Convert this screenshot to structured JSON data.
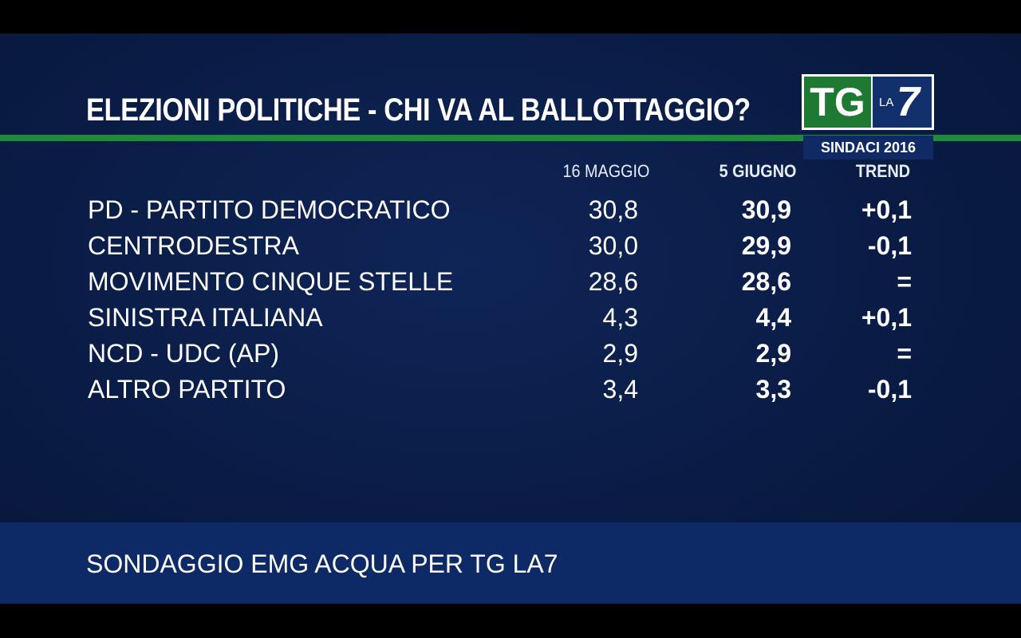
{
  "header": {
    "title": "ELEZIONI POLITICHE - CHI VA AL BALLOTTAGGIO?",
    "logo": {
      "tg": "TG",
      "la": "LA",
      "seven": "7"
    },
    "badge": "SINDACI 2016"
  },
  "table": {
    "columns": [
      "16 MAGGIO",
      "5 GIUGNO",
      "TREND"
    ],
    "rows": [
      [
        "PD - PARTITO DEMOCRATICO",
        "30,8",
        "30,9",
        "+0,1"
      ],
      [
        "CENTRODESTRA",
        "30,0",
        "29,9",
        "-0,1"
      ],
      [
        "MOVIMENTO CINQUE STELLE",
        "28,6",
        "28,6",
        "="
      ],
      [
        "SINISTRA ITALIANA",
        "4,3",
        "4,4",
        "+0,1"
      ],
      [
        "NCD - UDC (AP)",
        "2,9",
        "2,9",
        "="
      ],
      [
        "ALTRO PARTITO",
        "3,4",
        "3,3",
        "-0,1"
      ]
    ]
  },
  "footer": {
    "source": "SONDAGGIO EMG ACQUA PER TG LA7"
  }
}
